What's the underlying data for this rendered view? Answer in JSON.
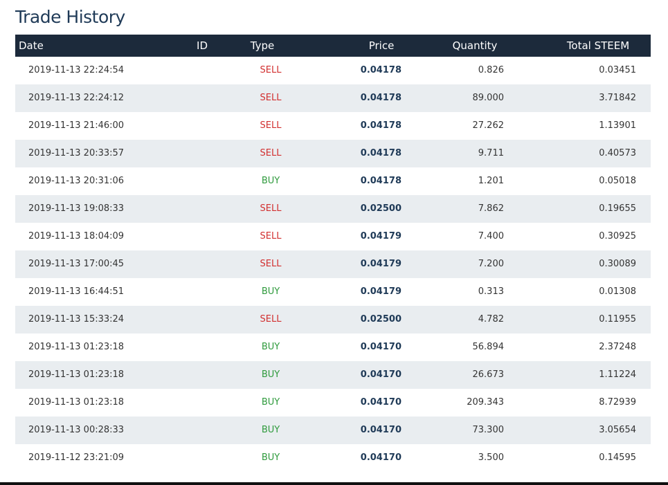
{
  "header": {
    "title": "Trade History"
  },
  "table": {
    "columns": [
      "Date",
      "ID",
      "Type",
      "Price",
      "Quantity",
      "Total STEEM"
    ],
    "type_colors": {
      "SELL": "#d22f2f",
      "BUY": "#2e9a3c"
    },
    "rows": [
      {
        "date": "2019-11-13 22:24:54",
        "type": "SELL",
        "price": "0.04178",
        "quantity": "0.826",
        "total": "0.03451"
      },
      {
        "date": "2019-11-13 22:24:12",
        "type": "SELL",
        "price": "0.04178",
        "quantity": "89.000",
        "total": "3.71842"
      },
      {
        "date": "2019-11-13 21:46:00",
        "type": "SELL",
        "price": "0.04178",
        "quantity": "27.262",
        "total": "1.13901"
      },
      {
        "date": "2019-11-13 20:33:57",
        "type": "SELL",
        "price": "0.04178",
        "quantity": "9.711",
        "total": "0.40573"
      },
      {
        "date": "2019-11-13 20:31:06",
        "type": "BUY",
        "price": "0.04178",
        "quantity": "1.201",
        "total": "0.05018"
      },
      {
        "date": "2019-11-13 19:08:33",
        "type": "SELL",
        "price": "0.02500",
        "quantity": "7.862",
        "total": "0.19655"
      },
      {
        "date": "2019-11-13 18:04:09",
        "type": "SELL",
        "price": "0.04179",
        "quantity": "7.400",
        "total": "0.30925"
      },
      {
        "date": "2019-11-13 17:00:45",
        "type": "SELL",
        "price": "0.04179",
        "quantity": "7.200",
        "total": "0.30089"
      },
      {
        "date": "2019-11-13 16:44:51",
        "type": "BUY",
        "price": "0.04179",
        "quantity": "0.313",
        "total": "0.01308"
      },
      {
        "date": "2019-11-13 15:33:24",
        "type": "SELL",
        "price": "0.02500",
        "quantity": "4.782",
        "total": "0.11955"
      },
      {
        "date": "2019-11-13 01:23:18",
        "type": "BUY",
        "price": "0.04170",
        "quantity": "56.894",
        "total": "2.37248"
      },
      {
        "date": "2019-11-13 01:23:18",
        "type": "BUY",
        "price": "0.04170",
        "quantity": "26.673",
        "total": "1.11224"
      },
      {
        "date": "2019-11-13 01:23:18",
        "type": "BUY",
        "price": "0.04170",
        "quantity": "209.343",
        "total": "8.72939"
      },
      {
        "date": "2019-11-13 00:28:33",
        "type": "BUY",
        "price": "0.04170",
        "quantity": "73.300",
        "total": "3.05654"
      },
      {
        "date": "2019-11-12 23:21:09",
        "type": "BUY",
        "price": "0.04170",
        "quantity": "3.500",
        "total": "0.14595"
      }
    ]
  }
}
